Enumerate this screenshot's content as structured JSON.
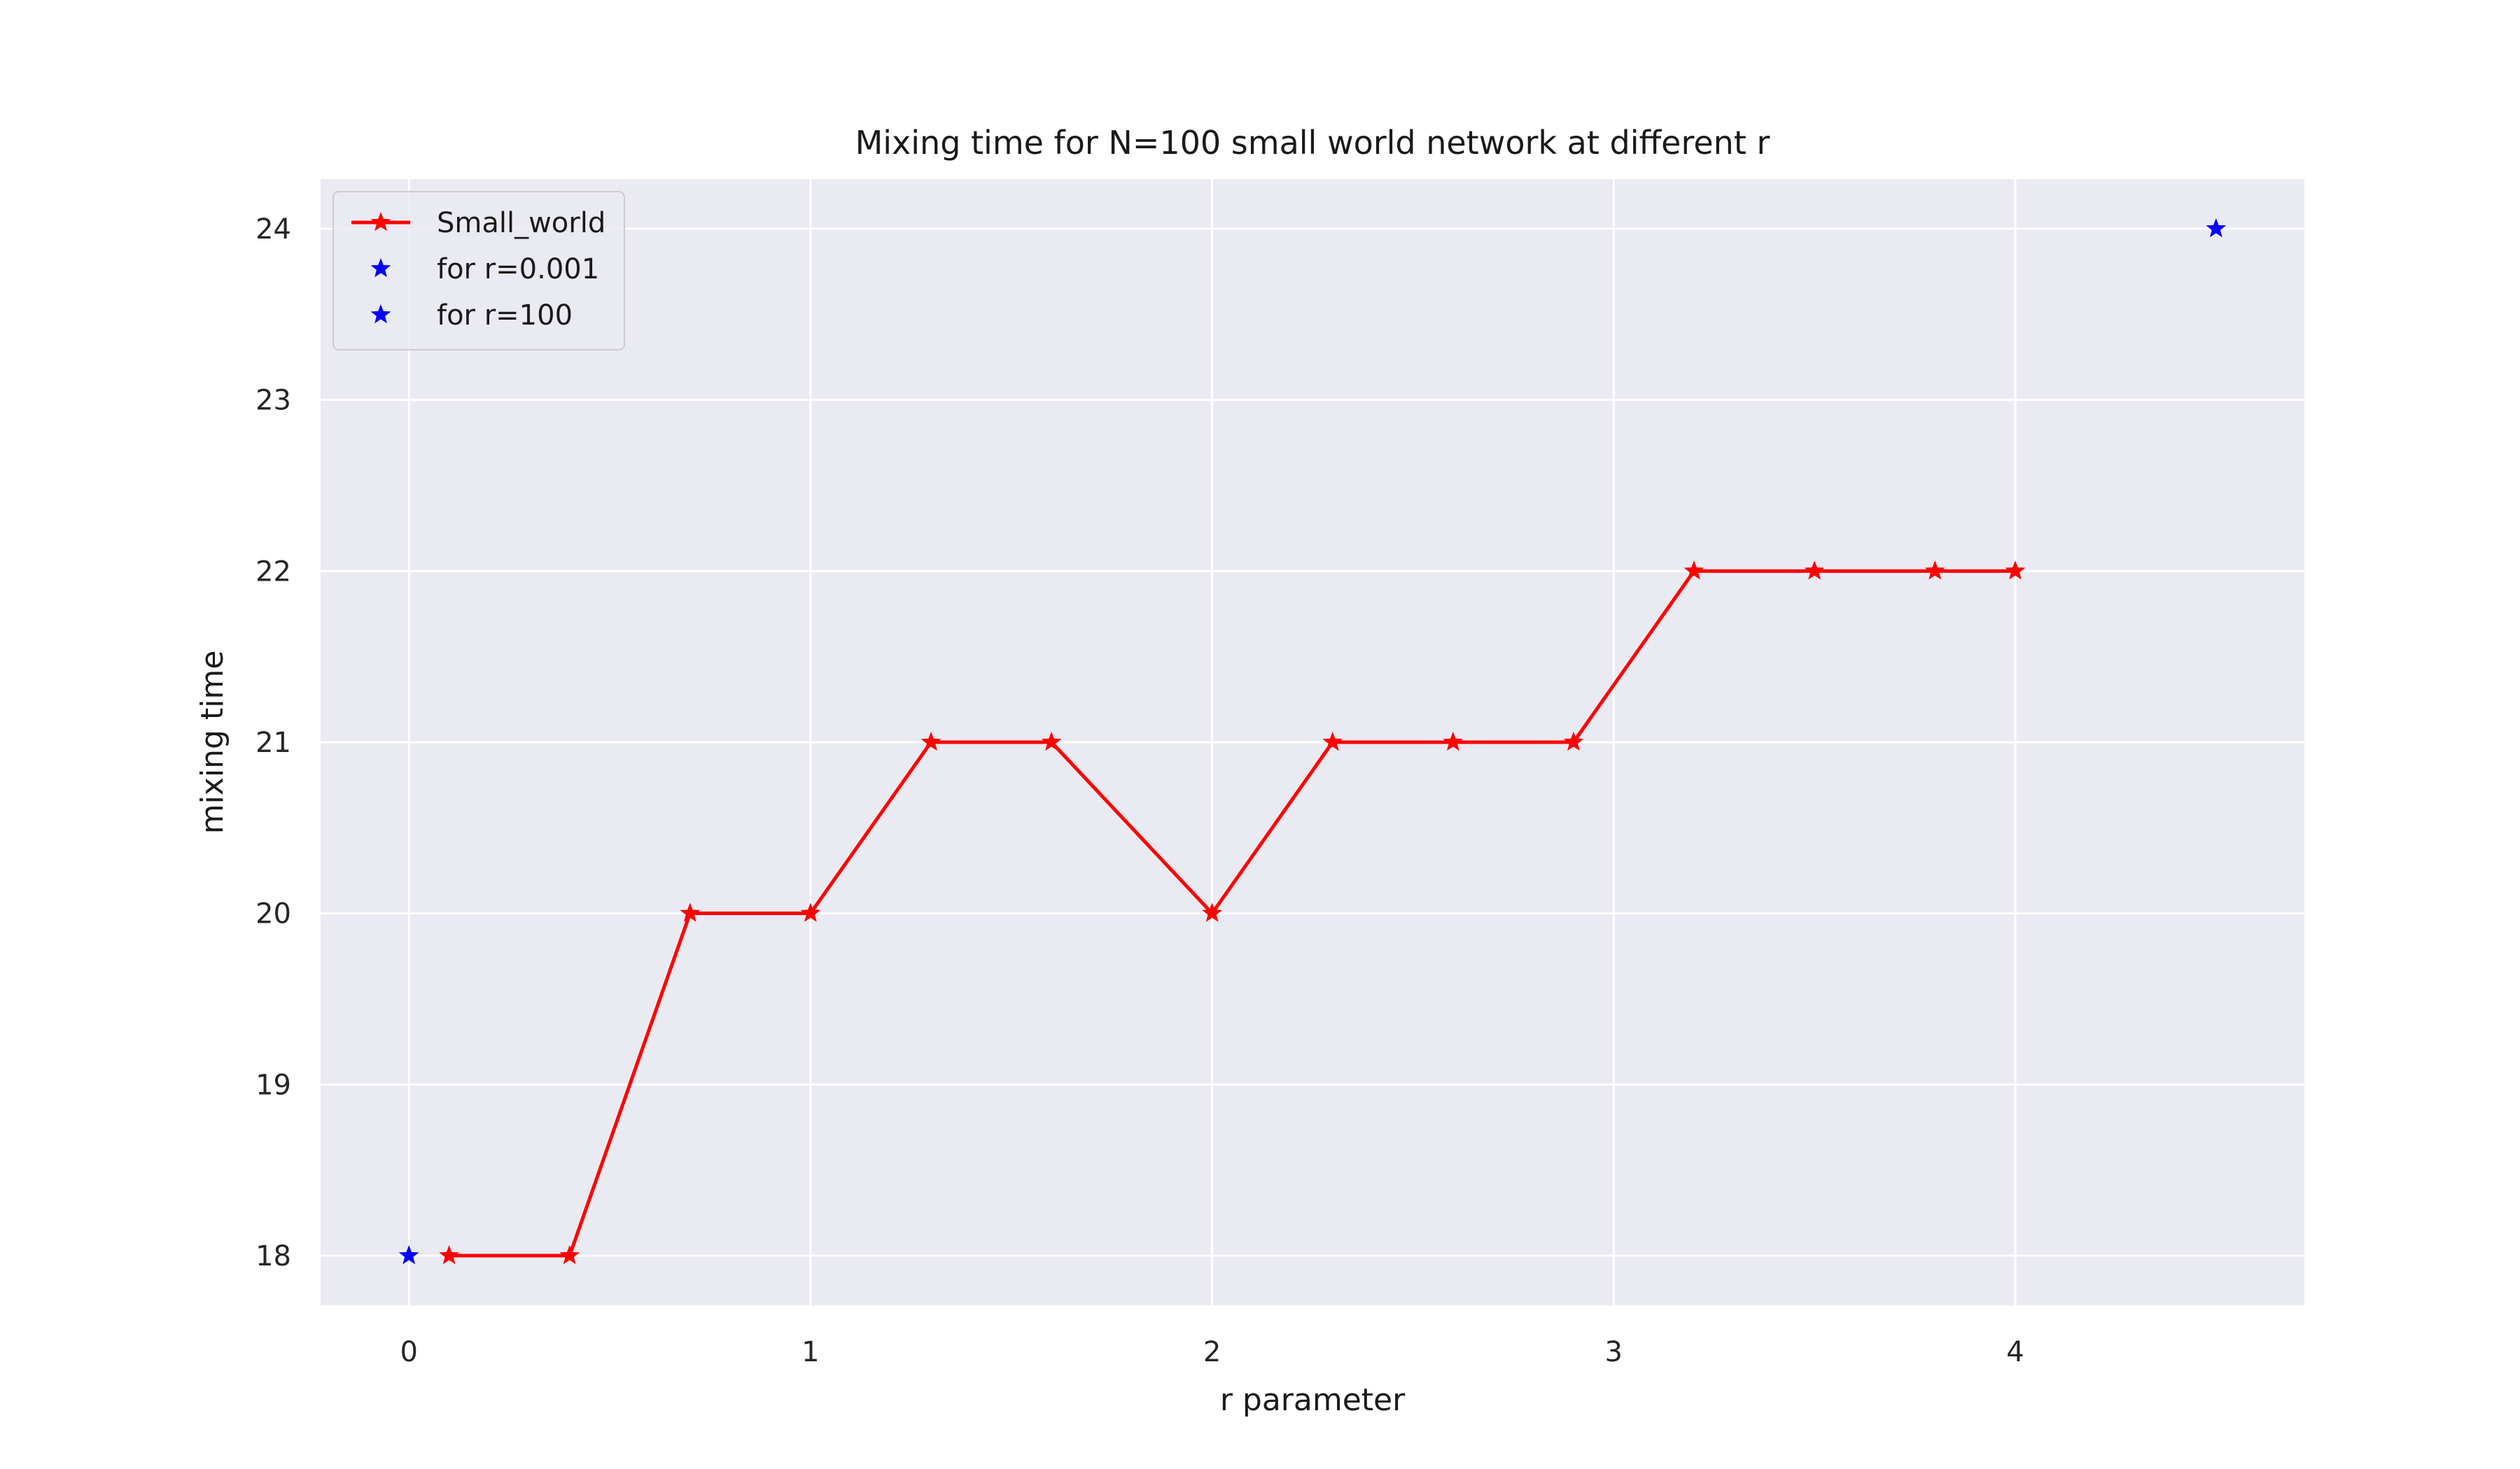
{
  "chart_data": {
    "type": "line",
    "title": "Mixing time for N=100 small world network at different r",
    "xlabel": "r parameter",
    "ylabel": "mixing time",
    "xlim": [
      -0.22,
      4.72
    ],
    "ylim": [
      17.71,
      24.29
    ],
    "xticks": [
      0,
      1,
      2,
      3,
      4
    ],
    "yticks": [
      18,
      19,
      20,
      21,
      22,
      23,
      24
    ],
    "grid": true,
    "legend_position": "upper left",
    "series": [
      {
        "name": "Small_world",
        "color": "#ff0000",
        "marker": "star",
        "line": true,
        "x": [
          0.1,
          0.4,
          0.7,
          1.0,
          1.3,
          1.6,
          2.0,
          2.3,
          2.6,
          2.9,
          3.2,
          3.5,
          3.8,
          4.0
        ],
        "y": [
          18,
          18,
          20,
          20,
          21,
          21,
          20,
          21,
          21,
          21,
          22,
          22,
          22,
          22
        ]
      },
      {
        "name": "for r=0.001",
        "color": "#0000ff",
        "marker": "star",
        "line": false,
        "x": [
          0.0
        ],
        "y": [
          18
        ]
      },
      {
        "name": "for r=100",
        "color": "#0000ff",
        "marker": "star",
        "line": false,
        "x": [
          4.5
        ],
        "y": [
          24
        ]
      }
    ]
  }
}
